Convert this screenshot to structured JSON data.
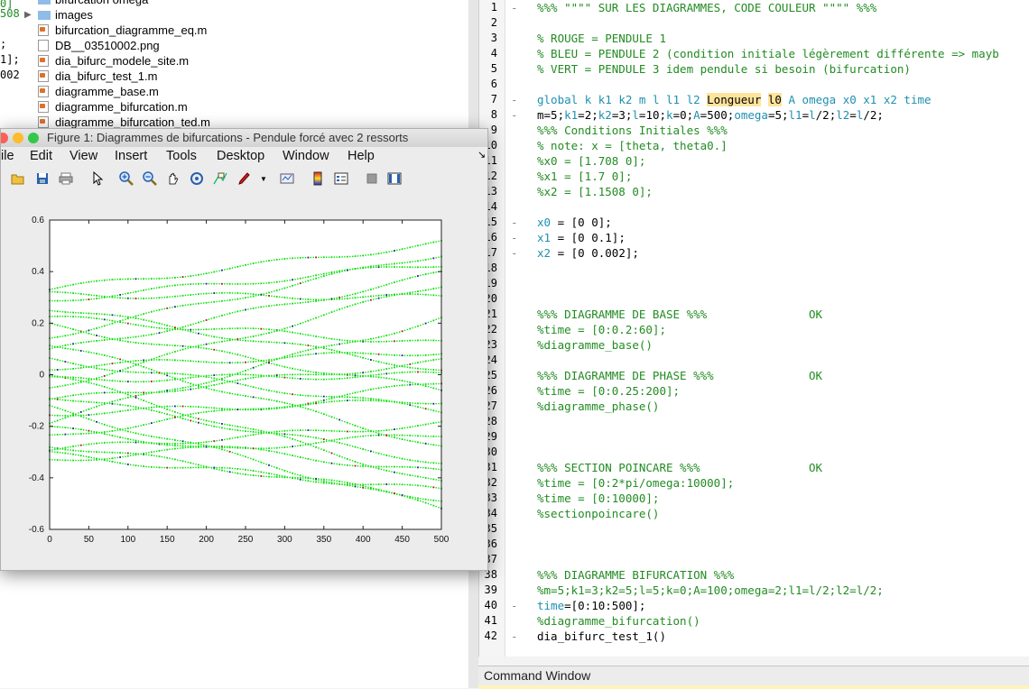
{
  "workspace_strip": {
    "lines": [
      {
        "text": " 0]",
        "color": "#228b22",
        "top": 0
      },
      {
        "text": "508",
        "color": "#228b22",
        "top": 11
      },
      {
        "text": ";",
        "color": "#000000",
        "top": 45
      },
      {
        "text": "1];",
        "color": "#000000",
        "top": 62
      },
      {
        "text": "002",
        "color": "#000000",
        "top": 79
      }
    ]
  },
  "file_browser": {
    "items": [
      {
        "label": "bifurcation omega",
        "type": "folder",
        "arrow": ""
      },
      {
        "label": "images",
        "type": "folder",
        "arrow": "▶"
      },
      {
        "label": "bifurcation_diagramme_eq.m",
        "type": "m",
        "arrow": ""
      },
      {
        "label": "DB__03510002.png",
        "type": "png",
        "arrow": ""
      },
      {
        "label": "dia_bifurc_modele_site.m",
        "type": "m",
        "arrow": ""
      },
      {
        "label": "dia_bifurc_test_1.m",
        "type": "m",
        "arrow": ""
      },
      {
        "label": "diagramme_base.m",
        "type": "m",
        "arrow": ""
      },
      {
        "label": "diagramme_bifurcation.m",
        "type": "m",
        "arrow": ""
      },
      {
        "label": "diagramme_bifurcation_ted.m",
        "type": "m",
        "arrow": ""
      }
    ]
  },
  "editor": {
    "lines": [
      {
        "n": "1",
        "dash": "-",
        "parts": [
          {
            "t": "%%% \"\"\"\" SUR LES DIAGRAMMES, CODE COULEUR \"\"\"\" %%%",
            "c": "cm"
          }
        ]
      },
      {
        "n": "2",
        "dash": "",
        "parts": []
      },
      {
        "n": "3",
        "dash": "",
        "parts": [
          {
            "t": "% ROUGE = PENDULE 1",
            "c": "cm"
          }
        ]
      },
      {
        "n": "4",
        "dash": "",
        "parts": [
          {
            "t": "% BLEU = PENDULE 2 (condition initiale légèrement différente => mayb",
            "c": "cm"
          }
        ]
      },
      {
        "n": "5",
        "dash": "",
        "parts": [
          {
            "t": "% VERT = PENDULE 3 idem pendule si besoin (bifurcation)",
            "c": "cm"
          }
        ]
      },
      {
        "n": "6",
        "dash": "",
        "parts": []
      },
      {
        "n": "7",
        "dash": "-",
        "parts": [
          {
            "t": "global ",
            "c": "kw"
          },
          {
            "t": "k k1 k2 m l l1 l2 ",
            "c": "cy"
          },
          {
            "t": "Longueur",
            "c": "hl"
          },
          {
            "t": " ",
            "c": ""
          },
          {
            "t": "l0",
            "c": "hl"
          },
          {
            "t": " A omega x0 x1 x2 time",
            "c": "cy"
          }
        ]
      },
      {
        "n": "8",
        "dash": "-",
        "parts": [
          {
            "t": "m=5;",
            "c": ""
          },
          {
            "t": "k1",
            "c": "cy"
          },
          {
            "t": "=2;",
            "c": ""
          },
          {
            "t": "k2",
            "c": "cy"
          },
          {
            "t": "=3;",
            "c": ""
          },
          {
            "t": "l",
            "c": "cy"
          },
          {
            "t": "=10;",
            "c": ""
          },
          {
            "t": "k",
            "c": "cy"
          },
          {
            "t": "=0;",
            "c": ""
          },
          {
            "t": "A",
            "c": "cy"
          },
          {
            "t": "=500;",
            "c": ""
          },
          {
            "t": "omega",
            "c": "cy"
          },
          {
            "t": "=5;",
            "c": ""
          },
          {
            "t": "l1",
            "c": "cy"
          },
          {
            "t": "=",
            "c": ""
          },
          {
            "t": "l",
            "c": "cy"
          },
          {
            "t": "/2;",
            "c": ""
          },
          {
            "t": "l2",
            "c": "cy"
          },
          {
            "t": "=",
            "c": ""
          },
          {
            "t": "l",
            "c": "cy"
          },
          {
            "t": "/2;",
            "c": ""
          }
        ]
      },
      {
        "n": "9",
        "dash": "",
        "parts": [
          {
            "t": "%%% Conditions Initiales %%%",
            "c": "cm"
          }
        ]
      },
      {
        "n": "10",
        "dash": "",
        "parts": [
          {
            "t": "% note: x = [theta, theta0.]",
            "c": "cm"
          }
        ]
      },
      {
        "n": "11",
        "dash": "",
        "parts": [
          {
            "t": "%x0 = [1.708 0];",
            "c": "cm"
          }
        ]
      },
      {
        "n": "12",
        "dash": "",
        "parts": [
          {
            "t": "%x1 = [1.7 0];",
            "c": "cm"
          }
        ]
      },
      {
        "n": "13",
        "dash": "",
        "parts": [
          {
            "t": "%x2 = [1.1508 0];",
            "c": "cm"
          }
        ]
      },
      {
        "n": "14",
        "dash": "",
        "parts": []
      },
      {
        "n": "15",
        "dash": "-",
        "parts": [
          {
            "t": "x0",
            "c": "cy"
          },
          {
            "t": " = [0 0];",
            "c": ""
          }
        ]
      },
      {
        "n": "16",
        "dash": "-",
        "parts": [
          {
            "t": "x1",
            "c": "cy"
          },
          {
            "t": " = [0 0.1];",
            "c": ""
          }
        ]
      },
      {
        "n": "17",
        "dash": "-",
        "parts": [
          {
            "t": "x2",
            "c": "cy"
          },
          {
            "t": " = [0 0.002];",
            "c": ""
          }
        ]
      },
      {
        "n": "18",
        "dash": "",
        "parts": []
      },
      {
        "n": "19",
        "dash": "",
        "parts": []
      },
      {
        "n": "20",
        "dash": "",
        "parts": []
      },
      {
        "n": "21",
        "dash": "",
        "parts": [
          {
            "t": "%%% DIAGRAMME DE BASE %%%               OK",
            "c": "cm"
          }
        ]
      },
      {
        "n": "22",
        "dash": "",
        "parts": [
          {
            "t": "%time = [0:0.2:60];",
            "c": "cm"
          }
        ]
      },
      {
        "n": "23",
        "dash": "",
        "parts": [
          {
            "t": "%diagramme_base()",
            "c": "cm"
          }
        ]
      },
      {
        "n": "24",
        "dash": "",
        "parts": []
      },
      {
        "n": "25",
        "dash": "",
        "parts": [
          {
            "t": "%%% DIAGRAMME DE PHASE %%%              OK",
            "c": "cm"
          }
        ]
      },
      {
        "n": "26",
        "dash": "",
        "parts": [
          {
            "t": "%time = [0:0.25:200];",
            "c": "cm"
          }
        ]
      },
      {
        "n": "27",
        "dash": "",
        "parts": [
          {
            "t": "%diagramme_phase()",
            "c": "cm"
          }
        ]
      },
      {
        "n": "28",
        "dash": "",
        "parts": []
      },
      {
        "n": "29",
        "dash": "",
        "parts": []
      },
      {
        "n": "30",
        "dash": "",
        "parts": []
      },
      {
        "n": "31",
        "dash": "",
        "parts": [
          {
            "t": "%%% SECTION POINCARE %%%                OK",
            "c": "cm"
          }
        ]
      },
      {
        "n": "32",
        "dash": "",
        "parts": [
          {
            "t": "%time = [0:2*pi/omega:10000];",
            "c": "cm"
          }
        ]
      },
      {
        "n": "33",
        "dash": "",
        "parts": [
          {
            "t": "%time = [0:10000];",
            "c": "cm"
          }
        ]
      },
      {
        "n": "34",
        "dash": "",
        "parts": [
          {
            "t": "%sectionpoincare()",
            "c": "cm"
          }
        ]
      },
      {
        "n": "35",
        "dash": "",
        "parts": []
      },
      {
        "n": "36",
        "dash": "",
        "parts": []
      },
      {
        "n": "37",
        "dash": "",
        "parts": []
      },
      {
        "n": "38",
        "dash": "",
        "parts": [
          {
            "t": "%%% DIAGRAMME BIFURCATION %%%",
            "c": "cm"
          }
        ]
      },
      {
        "n": "39",
        "dash": "",
        "parts": [
          {
            "t": "%m=5;k1=3;k2=5;l=5;k=0;A=100;omega=2;l1=l/2;l2=l/2;",
            "c": "cm"
          }
        ]
      },
      {
        "n": "40",
        "dash": "-",
        "parts": [
          {
            "t": "time",
            "c": "cy"
          },
          {
            "t": "=[0:10:500];",
            "c": ""
          }
        ]
      },
      {
        "n": "41",
        "dash": "",
        "parts": [
          {
            "t": "%diagramme_bifurcation()",
            "c": "cm"
          }
        ]
      },
      {
        "n": "42",
        "dash": "-",
        "parts": [
          {
            "t": "dia_bifurc_test_1()",
            "c": ""
          }
        ]
      }
    ]
  },
  "command_window": {
    "title": "Command Window"
  },
  "figure": {
    "title": "Figure 1: Diagrammes de bifurcations - Pendule forcé avec 2 ressorts",
    "menu": [
      "ile",
      "Edit",
      "View",
      "Insert",
      "Tools",
      "Desktop",
      "Window",
      "Help"
    ],
    "toolbar_icons": [
      "open-folder-icon",
      "save-icon",
      "print-icon",
      "pointer-icon",
      "zoom-in-icon",
      "zoom-out-icon",
      "pan-hand-icon",
      "rotate-3d-icon",
      "data-cursor-icon",
      "brush-icon",
      "link-plot-icon",
      "colorbar-icon",
      "legend-icon",
      "hide-plot-tools-icon",
      "show-plot-tools-icon"
    ],
    "traffic_colors": {
      "close": "#fc5f57",
      "minimize": "#fdbc2e",
      "zoom": "#34c84a"
    }
  },
  "chart_data": {
    "type": "scatter",
    "title": "",
    "xlabel": "",
    "ylabel": "",
    "xlim": [
      0,
      500
    ],
    "ylim": [
      -0.6,
      0.6
    ],
    "x_ticks": [
      "0",
      "50",
      "100",
      "150",
      "200",
      "250",
      "300",
      "350",
      "400",
      "450",
      "500"
    ],
    "y_ticks": [
      "-0.6",
      "-0.4",
      "-0.2",
      "0",
      "0.2",
      "0.4",
      "0.6"
    ],
    "grid": false,
    "series_colors": [
      "#00e000",
      "#1a1a8a",
      "#b01010"
    ],
    "branches_start": [
      0.33,
      0.31,
      0.29,
      0.26,
      0.22,
      0.19,
      0.15,
      0.12,
      0.09,
      0.06,
      0.03,
      0.0,
      -0.02,
      -0.05,
      -0.08,
      -0.1,
      -0.13,
      -0.15,
      -0.18,
      -0.21,
      -0.24,
      -0.27,
      -0.29,
      -0.31,
      -0.33
    ],
    "branches_end": [
      0.51,
      0.47,
      0.43,
      0.39,
      0.35,
      0.3,
      0.22,
      0.12,
      0.09,
      0.05,
      0.02,
      0.0,
      -0.03,
      -0.06,
      -0.1,
      -0.14,
      -0.19,
      -0.23,
      -0.28,
      -0.34,
      -0.38,
      -0.42,
      -0.45,
      -0.48,
      -0.52
    ],
    "branch_order_end": [
      0,
      5,
      2,
      10,
      7,
      13,
      1,
      18,
      3,
      15,
      8,
      21,
      11,
      4,
      19,
      9,
      24,
      14,
      6,
      20,
      12,
      23,
      16,
      22,
      17
    ],
    "x_step": 10
  }
}
